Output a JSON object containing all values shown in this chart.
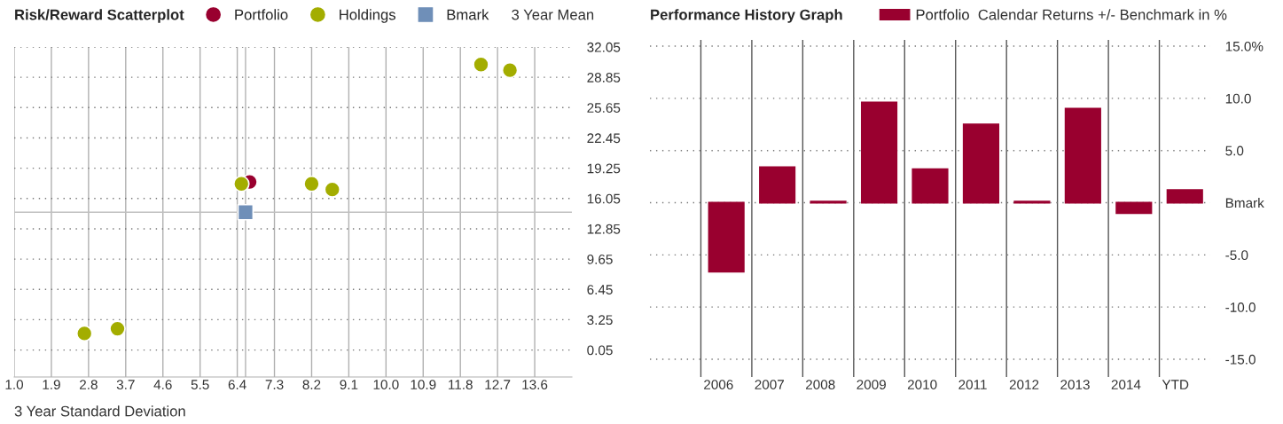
{
  "chart_data": [
    {
      "type": "scatter",
      "title": "Risk/Reward Scatterplot",
      "xlabel": "3 Year Standard Deviation",
      "ylabel": "3 Year Mean",
      "series": [
        {
          "name": "Portfolio",
          "color": "#99002f",
          "marker": "circle",
          "x": [
            6.7
          ],
          "values": [
            17.8
          ]
        },
        {
          "name": "Holdings",
          "color": "#a3ad00",
          "marker": "circle",
          "x": [
            12.3,
            13.0,
            6.5,
            8.2,
            8.7,
            2.7,
            3.5
          ],
          "values": [
            30.2,
            29.6,
            17.6,
            17.6,
            17.0,
            1.8,
            2.3
          ]
        },
        {
          "name": "Bmark",
          "color": "#6f8fb8",
          "marker": "square",
          "x": [
            6.6
          ],
          "values": [
            14.6
          ]
        }
      ],
      "xlim": [
        1.0,
        14.5
      ],
      "xticks": [
        {
          "value": 1,
          "label": "1.0"
        },
        1.9,
        2.8,
        3.7,
        4.6,
        5.5,
        6.4,
        7.3,
        8.2,
        9.1,
        {
          "value": 10,
          "label": "10.0"
        },
        10.9,
        11.8,
        12.7,
        13.6
      ],
      "ylim": [
        -2.8,
        32.05
      ],
      "yticks": [
        32.05,
        28.85,
        25.65,
        22.45,
        19.25,
        16.05,
        12.85,
        9.65,
        6.45,
        3.25,
        0.05
      ],
      "ref_lines": [
        {
          "axis": "x",
          "value": 6.6,
          "color": "#c0c0c0"
        },
        {
          "axis": "y",
          "value": 14.6,
          "color": "#c0c0c0"
        }
      ],
      "grid": true,
      "legend": "top"
    },
    {
      "type": "bar",
      "title": "Performance History Graph",
      "ylabel": "Calendar Returns +/- Benchmark in %",
      "categories": [
        "2006",
        "2007",
        "2008",
        "2009",
        "2010",
        "2011",
        "2012",
        "2013",
        "2014",
        "YTD"
      ],
      "series": [
        {
          "name": "Portfolio",
          "color": "#99002f",
          "values": [
            -6.6,
            3.4,
            0.1,
            9.6,
            3.2,
            7.5,
            0.1,
            9.0,
            -1.0,
            1.2
          ]
        }
      ],
      "ylim": [
        -16.7,
        15.6
      ],
      "yticks": [
        {
          "value": 15,
          "label": "15.0%"
        },
        {
          "value": 10,
          "label": "10.0"
        },
        {
          "value": 5,
          "label": "5.0"
        },
        {
          "value": 0,
          "label": "Bmark"
        },
        {
          "value": -5,
          "label": "-5.0"
        },
        {
          "value": -10,
          "label": "-10.0"
        },
        {
          "value": -15,
          "label": "-15.0"
        }
      ],
      "grid": true,
      "legend": "top"
    }
  ]
}
